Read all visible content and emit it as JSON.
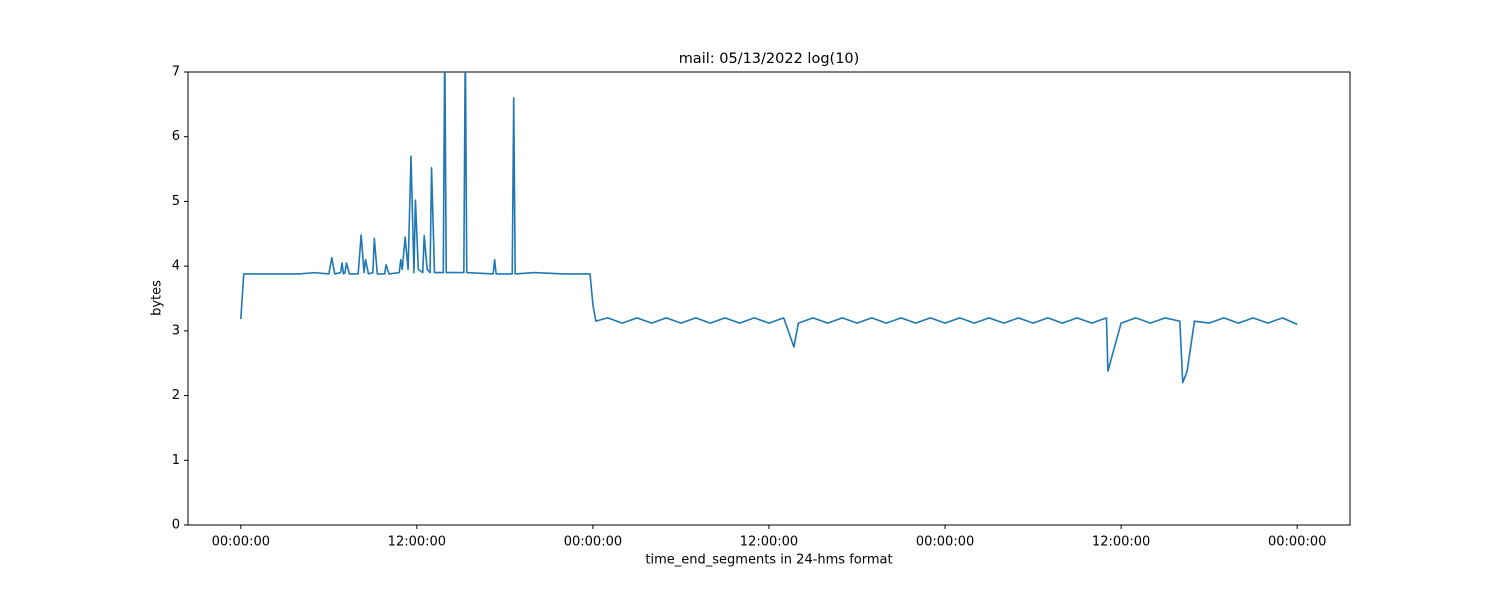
{
  "chart_data": {
    "type": "line",
    "title": "mail: 05/13/2022 log(10)",
    "x_label": "time_end_segments in 24-hms format",
    "y_label": "bytes",
    "color": "#1f77b4",
    "x": [
      0,
      0.2,
      1,
      2,
      3,
      4,
      5,
      6,
      6.2,
      6.4,
      6.8,
      6.9,
      7.0,
      7.1,
      7.2,
      7.4,
      8.0,
      8.2,
      8.4,
      8.5,
      8.7,
      9.0,
      9.1,
      9.3,
      9.8,
      9.9,
      10.1,
      10.8,
      10.9,
      11.0,
      11.2,
      11.4,
      11.6,
      11.8,
      11.9,
      12.1,
      12.4,
      12.5,
      12.7,
      12.9,
      13.0,
      13.2,
      13.8,
      13.9,
      14.0,
      15.2,
      15.3,
      15.4,
      17.2,
      17.3,
      17.4,
      18.5,
      18.6,
      18.7,
      20,
      22,
      23.8,
      24.0,
      24.2,
      25,
      26,
      27,
      28,
      29,
      30,
      31,
      32,
      33,
      34,
      35,
      36,
      37,
      37.7,
      38,
      39,
      40,
      41,
      42,
      43,
      44,
      45,
      46,
      47,
      48,
      49,
      50,
      51,
      52,
      53,
      54,
      55,
      56,
      57,
      58,
      59,
      59.1,
      60,
      61,
      62,
      63,
      64,
      64.2,
      64.5,
      65,
      66,
      67,
      68,
      69,
      70,
      71,
      72
    ],
    "values": [
      3.18,
      3.88,
      3.88,
      3.88,
      3.88,
      3.88,
      3.9,
      3.88,
      4.13,
      3.88,
      3.9,
      4.05,
      3.88,
      3.9,
      4.05,
      3.88,
      3.88,
      4.48,
      3.9,
      4.1,
      3.88,
      3.9,
      4.43,
      3.88,
      3.88,
      4.02,
      3.88,
      3.9,
      4.1,
      3.95,
      4.45,
      3.95,
      5.7,
      3.9,
      5.02,
      3.95,
      3.9,
      4.47,
      3.95,
      3.9,
      5.52,
      3.9,
      3.9,
      7.5,
      3.9,
      3.9,
      7.5,
      3.9,
      3.88,
      4.1,
      3.88,
      3.88,
      6.6,
      3.88,
      3.9,
      3.88,
      3.88,
      3.4,
      3.15,
      3.2,
      3.12,
      3.2,
      3.12,
      3.2,
      3.12,
      3.2,
      3.12,
      3.2,
      3.12,
      3.2,
      3.12,
      3.2,
      2.75,
      3.12,
      3.2,
      3.12,
      3.2,
      3.12,
      3.2,
      3.12,
      3.2,
      3.12,
      3.2,
      3.12,
      3.2,
      3.12,
      3.2,
      3.12,
      3.2,
      3.12,
      3.2,
      3.12,
      3.2,
      3.12,
      3.2,
      2.38,
      3.12,
      3.2,
      3.12,
      3.2,
      3.15,
      2.2,
      2.38,
      3.15,
      3.12,
      3.2,
      3.12,
      3.2,
      3.12,
      3.2,
      3.1
    ],
    "xlim": [
      -3.6,
      75.6
    ],
    "xticks": [
      {
        "value": 0,
        "label": "00:00:00"
      },
      {
        "value": 12,
        "label": "12:00:00"
      },
      {
        "value": 24,
        "label": "00:00:00"
      },
      {
        "value": 36,
        "label": "12:00:00"
      },
      {
        "value": 48,
        "label": "00:00:00"
      },
      {
        "value": 60,
        "label": "12:00:00"
      },
      {
        "value": 72,
        "label": "00:00:00"
      }
    ],
    "ylim": [
      0,
      7
    ],
    "yticks": [
      0,
      1,
      2,
      3,
      4,
      5,
      6,
      7
    ]
  }
}
